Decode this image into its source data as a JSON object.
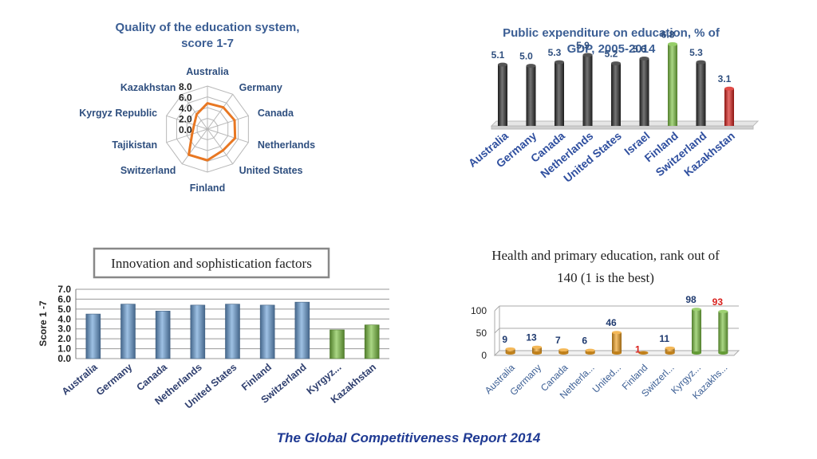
{
  "chart_data": [
    {
      "type": "radar",
      "title": "Quality of the education system, score 1-7",
      "categories": [
        "Australia",
        "Germany",
        "Canada",
        "Netherlands",
        "United States",
        "Finland",
        "Switzerland",
        "Tajikistan",
        "Kyrgyz Republic",
        "Kazakhstan"
      ],
      "values": [
        4.8,
        5.0,
        5.3,
        5.4,
        4.9,
        5.8,
        5.9,
        3.0,
        2.6,
        3.4
      ],
      "rlim": [
        0,
        8
      ],
      "rticks": [
        "0.0",
        "2.0",
        "4.0",
        "6.0",
        "8.0"
      ],
      "color": "#e87722"
    },
    {
      "type": "bar",
      "title": "Public expenditure on education, % of GDP, 2005-2014",
      "categories": [
        "Australia",
        "Germany",
        "Canada",
        "Netherlands",
        "United States",
        "Israel",
        "Finland",
        "Switzerland",
        "Kazakhstan"
      ],
      "values": [
        5.1,
        5.0,
        5.3,
        5.9,
        5.2,
        5.6,
        6.8,
        5.3,
        3.1
      ],
      "value_labels": [
        "5.1",
        "5.0",
        "5.3",
        "5.9",
        "5.2",
        "5.6",
        "6.8",
        "5.3",
        "3.1"
      ],
      "colors": [
        "#2b2b2b",
        "#2b2b2b",
        "#2b2b2b",
        "#2b2b2b",
        "#2b2b2b",
        "#2b2b2b",
        "#7cc242",
        "#2b2b2b",
        "#d9201c"
      ],
      "ylim": [
        0,
        7.5
      ]
    },
    {
      "type": "bar",
      "title": "Innovation and sophistication factors",
      "ylabel": "Score 1 -7",
      "categories": [
        "Australia",
        "Germany",
        "Canada",
        "Netherlands",
        "United States",
        "Finland",
        "Switzerland",
        "Kyrgyz...",
        "Kazakhstan"
      ],
      "values": [
        4.5,
        5.5,
        4.8,
        5.4,
        5.5,
        5.4,
        5.7,
        2.9,
        3.4
      ],
      "colors": [
        "#6a9fd6",
        "#6a9fd6",
        "#6a9fd6",
        "#6a9fd6",
        "#6a9fd6",
        "#6a9fd6",
        "#6a9fd6",
        "#7cc242",
        "#7cc242"
      ],
      "ylim": [
        0,
        7
      ],
      "yticks": [
        "0.0",
        "1.0",
        "2.0",
        "3.0",
        "4.0",
        "5.0",
        "6.0",
        "7.0"
      ],
      "grid": true
    },
    {
      "type": "bar",
      "title": "Health and primary education, rank out of 140 (1 is  the best)",
      "categories": [
        "Australia",
        "Germany",
        "Canada",
        "Netherla...",
        "United...",
        "Finland",
        "Switzerl...",
        "Kyrgyz...",
        "Kazakhs..."
      ],
      "values": [
        9,
        13,
        7,
        6,
        46,
        1,
        11,
        98,
        93
      ],
      "value_labels": [
        "9",
        "13",
        "7",
        "6",
        "46",
        "1",
        "11",
        "98",
        "93"
      ],
      "label_colors": [
        "#1f3a6f",
        "#1f3a6f",
        "#1f3a6f",
        "#1f3a6f",
        "#1f3a6f",
        "#d9201c",
        "#1f3a6f",
        "#1f3a6f",
        "#d9201c"
      ],
      "colors": [
        "#f0a020",
        "#f0a020",
        "#f0a020",
        "#f0a020",
        "#f0a020",
        "#f0a020",
        "#f0a020",
        "#7cc242",
        "#7cc242"
      ],
      "ylim": [
        0,
        100
      ],
      "yticks": [
        "0",
        "50",
        "100"
      ],
      "grid": true
    }
  ],
  "footer": "The Global Competitiveness Report 2014"
}
